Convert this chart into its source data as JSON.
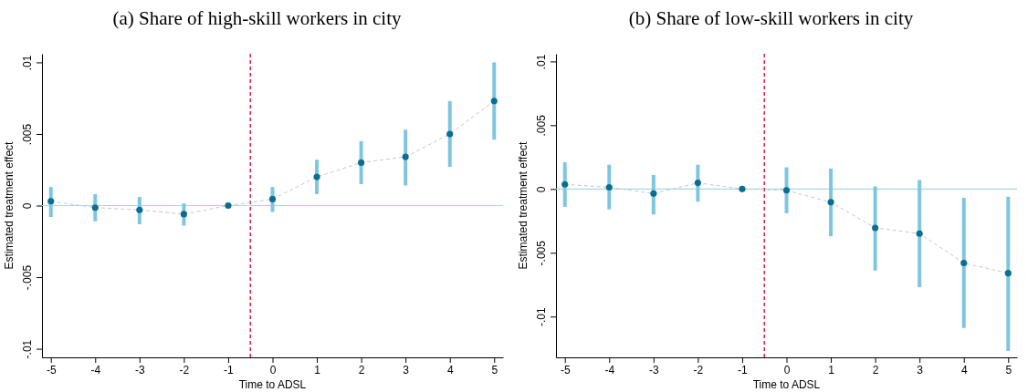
{
  "chart_data": [
    {
      "type": "scatter",
      "title": "(a) Share of high-skill workers in city",
      "xlabel": "Time to ADSL",
      "ylabel": "Estimated treatment effect",
      "x": [
        -5,
        -4,
        -3,
        -2,
        -1,
        0,
        1,
        2,
        3,
        4,
        5
      ],
      "xlim": [
        -5.2,
        5.2
      ],
      "xticks": [
        -5,
        -4,
        -3,
        -2,
        -1,
        0,
        1,
        2,
        3,
        4,
        5
      ],
      "ylim": [
        -0.0106,
        0.0106
      ],
      "yticks": [
        {
          "value": -0.01,
          "label": "-.01"
        },
        {
          "value": -0.005,
          "label": "-.005"
        },
        0,
        {
          "value": 0.005,
          "label": ".005"
        },
        {
          "value": 0.01,
          "label": ".01"
        }
      ],
      "grid": false,
      "series": [
        {
          "type": "line",
          "color": "#c8c8c8",
          "line_style": "dashed",
          "marker": "none",
          "values": [
            0.0003,
            -0.00014,
            -0.0003,
            -0.0006,
            0,
            0.00045,
            0.002,
            0.003,
            0.0034,
            0.005,
            0.0073
          ]
        },
        {
          "color": "#0b6e90",
          "marker": "circle",
          "values": [
            0.0003,
            -0.00014,
            -0.0003,
            -0.0006,
            0,
            0.00045,
            0.002,
            0.003,
            0.0034,
            0.005,
            0.0073
          ],
          "errors": [
            [
              -0.0008,
              0.0013
            ],
            [
              -0.0011,
              0.0008
            ],
            [
              -0.0013,
              0.0006
            ],
            [
              -0.0014,
              0.00016
            ],
            null,
            [
              -0.00045,
              0.0013
            ],
            [
              0.0008,
              0.0032
            ],
            [
              0.0015,
              0.0045
            ],
            [
              0.0014,
              0.0053
            ],
            [
              0.0027,
              0.0073
            ],
            [
              0.0046,
              0.01
            ]
          ]
        }
      ],
      "ref_lines": [
        {
          "axis": "y",
          "value": 0,
          "color": "#a8d8e6",
          "line_style": "solid"
        },
        {
          "axis": "x",
          "value": -0.5,
          "color": "#d6204a",
          "line_style": "dashed"
        }
      ]
    },
    {
      "type": "scatter",
      "title": "(b) Share of low-skill workers in city",
      "xlabel": "Time to ADSL",
      "ylabel": "Estimated treatment effect",
      "x": [
        -5,
        -4,
        -3,
        -2,
        -1,
        0,
        1,
        2,
        3,
        4,
        5
      ],
      "xlim": [
        -5.2,
        5.2
      ],
      "xticks": [
        -5,
        -4,
        -3,
        -2,
        -1,
        0,
        1,
        2,
        3,
        4,
        5
      ],
      "ylim": [
        -0.0132,
        0.0106
      ],
      "yticks": [
        {
          "value": -0.01,
          "label": "-.01"
        },
        {
          "value": -0.005,
          "label": "-.005"
        },
        0,
        {
          "value": 0.005,
          "label": ".005"
        },
        {
          "value": 0.01,
          "label": ".01"
        }
      ],
      "grid": false,
      "series": [
        {
          "type": "line",
          "color": "#c8c8c8",
          "line_style": "dashed",
          "marker": "none",
          "values": [
            0.00036,
            0.00013,
            -0.00036,
            0.00048,
            0,
            -0.0001,
            -0.00104,
            -0.00305,
            -0.0035,
            -0.0058,
            -0.0066
          ]
        },
        {
          "color": "#0b6e90",
          "marker": "circle",
          "values": [
            0.00036,
            0.00013,
            -0.00036,
            0.00048,
            0,
            -0.0001,
            -0.00104,
            -0.00305,
            -0.0035,
            -0.0058,
            -0.0066
          ],
          "errors": [
            [
              -0.0014,
              0.0021
            ],
            [
              -0.0016,
              0.0019
            ],
            [
              -0.002,
              0.0011
            ],
            [
              -0.001,
              0.0019
            ],
            null,
            [
              -0.0019,
              0.0017
            ],
            [
              -0.0037,
              0.0016
            ],
            [
              -0.0064,
              0.0002
            ],
            [
              -0.0077,
              0.0007
            ],
            [
              -0.0109,
              -0.0007
            ],
            [
              -0.0127,
              -0.0006
            ]
          ]
        }
      ],
      "ref_lines": [
        {
          "axis": "y",
          "value": 0,
          "color": "#a8d8e6",
          "line_style": "solid"
        },
        {
          "axis": "x",
          "value": -0.5,
          "color": "#d6204a",
          "line_style": "dashed"
        }
      ]
    }
  ]
}
